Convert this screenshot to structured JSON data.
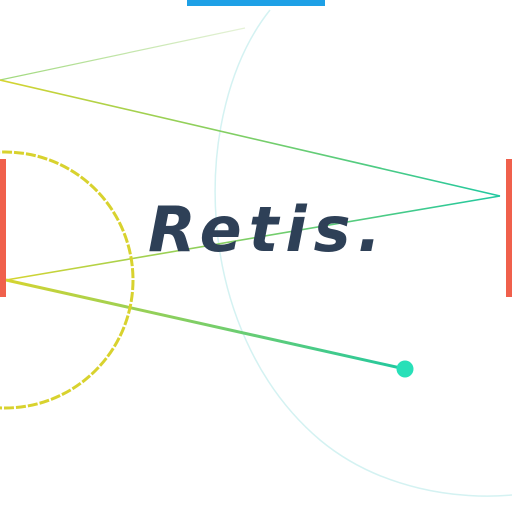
{
  "game": {
    "title": "Retis."
  },
  "colors": {
    "background": "#ffffff",
    "top_paddle": "#1ea0e6",
    "side_paddles": "#f0604c",
    "ring": "#d8d22e",
    "ball": "#28e0b8",
    "laser_start": "#d6d430",
    "laser_end": "#20c8a0",
    "faint_arc": "#d4f2f2",
    "title_text": "#2e4057"
  },
  "icons": {
    "ball": "circle",
    "ring": "dashed-circle"
  }
}
